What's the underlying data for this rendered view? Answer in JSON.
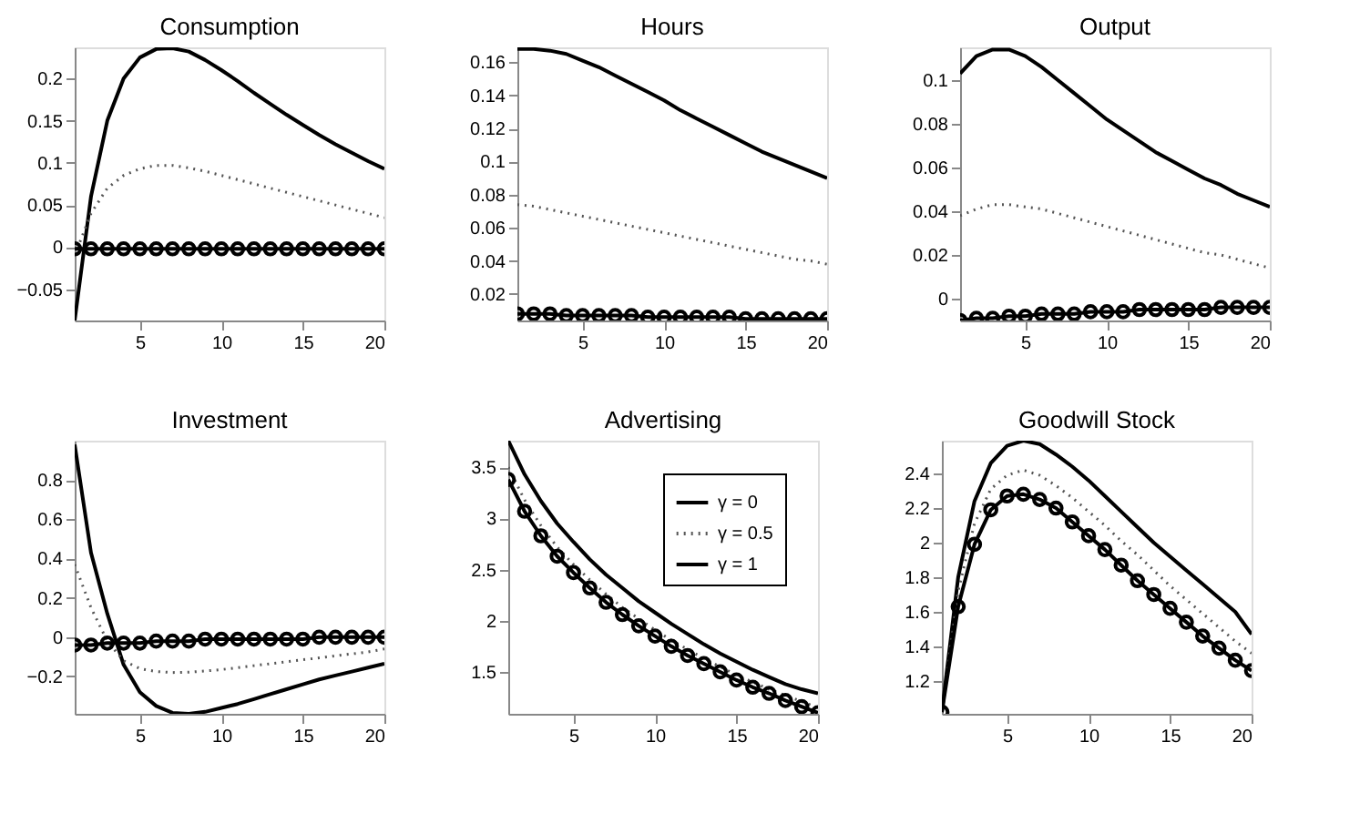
{
  "chart_data": [
    {
      "type": "line",
      "title": "Consumption",
      "x": [
        1,
        2,
        3,
        4,
        5,
        6,
        7,
        8,
        9,
        10,
        11,
        12,
        13,
        14,
        15,
        16,
        17,
        18,
        19,
        20
      ],
      "xlim": [
        1,
        20
      ],
      "xticks": [
        5,
        10,
        15,
        20
      ],
      "ylim": [
        -0.087,
        0.237
      ],
      "yticks": [
        -0.05,
        0,
        0.05,
        0.1,
        0.15,
        0.2
      ],
      "grid": false,
      "legend": false,
      "series": [
        {
          "color": "#000000",
          "line_style": "solid",
          "marker": "none",
          "values": [
            -0.087,
            0.06,
            0.15,
            0.2,
            0.225,
            0.235,
            0.236,
            0.232,
            0.222,
            0.21,
            0.197,
            0.183,
            0.17,
            0.157,
            0.145,
            0.133,
            0.122,
            0.112,
            0.102,
            0.093
          ]
        },
        {
          "color": "#555555",
          "line_style": "dotted",
          "marker": "none",
          "values": [
            -0.01,
            0.04,
            0.07,
            0.085,
            0.093,
            0.097,
            0.097,
            0.094,
            0.09,
            0.085,
            0.08,
            0.075,
            0.07,
            0.065,
            0.06,
            0.055,
            0.05,
            0.045,
            0.04,
            0.035
          ]
        },
        {
          "color": "#000000",
          "line_style": "solid",
          "marker": "circle",
          "values": [
            -0.002,
            -0.002,
            -0.002,
            -0.002,
            -0.002,
            -0.002,
            -0.002,
            -0.002,
            -0.002,
            -0.002,
            -0.002,
            -0.002,
            -0.002,
            -0.002,
            -0.002,
            -0.002,
            -0.002,
            -0.002,
            -0.002,
            -0.002
          ]
        }
      ]
    },
    {
      "type": "line",
      "title": "Hours",
      "x": [
        1,
        2,
        3,
        4,
        5,
        6,
        7,
        8,
        9,
        10,
        11,
        12,
        13,
        14,
        15,
        16,
        17,
        18,
        19,
        20
      ],
      "xlim": [
        1,
        20
      ],
      "xticks": [
        5,
        10,
        15,
        20
      ],
      "ylim": [
        0.004,
        0.169
      ],
      "yticks": [
        0.02,
        0.04,
        0.06,
        0.08,
        0.1,
        0.12,
        0.14,
        0.16
      ],
      "grid": false,
      "legend": false,
      "series": [
        {
          "color": "#000000",
          "line_style": "solid",
          "marker": "none",
          "values": [
            0.168,
            0.168,
            0.167,
            0.165,
            0.161,
            0.157,
            0.152,
            0.147,
            0.142,
            0.137,
            0.131,
            0.126,
            0.121,
            0.116,
            0.111,
            0.106,
            0.102,
            0.098,
            0.094,
            0.09
          ]
        },
        {
          "color": "#555555",
          "line_style": "dotted",
          "marker": "none",
          "values": [
            0.074,
            0.073,
            0.071,
            0.069,
            0.067,
            0.065,
            0.063,
            0.061,
            0.059,
            0.057,
            0.055,
            0.053,
            0.051,
            0.049,
            0.047,
            0.045,
            0.043,
            0.041,
            0.04,
            0.038
          ]
        },
        {
          "color": "#000000",
          "line_style": "solid",
          "marker": "circle",
          "values": [
            0.008,
            0.008,
            0.008,
            0.007,
            0.007,
            0.007,
            0.007,
            0.007,
            0.006,
            0.006,
            0.006,
            0.006,
            0.006,
            0.006,
            0.005,
            0.005,
            0.005,
            0.005,
            0.005,
            0.005
          ]
        }
      ]
    },
    {
      "type": "line",
      "title": "Output",
      "x": [
        1,
        2,
        3,
        4,
        5,
        6,
        7,
        8,
        9,
        10,
        11,
        12,
        13,
        14,
        15,
        16,
        17,
        18,
        19,
        20
      ],
      "xlim": [
        1,
        20
      ],
      "xticks": [
        5,
        10,
        15,
        20
      ],
      "ylim": [
        -0.01,
        0.115
      ],
      "yticks": [
        0,
        0.02,
        0.04,
        0.06,
        0.08,
        0.1
      ],
      "grid": false,
      "legend": false,
      "series": [
        {
          "color": "#000000",
          "line_style": "solid",
          "marker": "none",
          "values": [
            0.103,
            0.111,
            0.114,
            0.114,
            0.111,
            0.106,
            0.1,
            0.094,
            0.088,
            0.082,
            0.077,
            0.072,
            0.067,
            0.063,
            0.059,
            0.055,
            0.052,
            0.048,
            0.045,
            0.042
          ]
        },
        {
          "color": "#555555",
          "line_style": "dotted",
          "marker": "none",
          "values": [
            0.038,
            0.041,
            0.043,
            0.043,
            0.042,
            0.041,
            0.039,
            0.037,
            0.035,
            0.033,
            0.031,
            0.029,
            0.027,
            0.025,
            0.023,
            0.021,
            0.02,
            0.018,
            0.016,
            0.014
          ]
        },
        {
          "color": "#000000",
          "line_style": "solid",
          "marker": "circle",
          "values": [
            -0.01,
            -0.009,
            -0.009,
            -0.008,
            -0.008,
            -0.007,
            -0.007,
            -0.007,
            -0.006,
            -0.006,
            -0.006,
            -0.005,
            -0.005,
            -0.005,
            -0.005,
            -0.005,
            -0.004,
            -0.004,
            -0.004,
            -0.004
          ]
        }
      ]
    },
    {
      "type": "line",
      "title": "Investment",
      "x": [
        1,
        2,
        3,
        4,
        5,
        6,
        7,
        8,
        9,
        10,
        11,
        12,
        13,
        14,
        15,
        16,
        17,
        18,
        19,
        20
      ],
      "xlim": [
        1,
        20
      ],
      "xticks": [
        5,
        10,
        15,
        20
      ],
      "ylim": [
        -0.39,
        1.0
      ],
      "yticks": [
        -0.2,
        0,
        0.2,
        0.4,
        0.6,
        0.8
      ],
      "grid": false,
      "legend": false,
      "series": [
        {
          "color": "#000000",
          "line_style": "solid",
          "marker": "none",
          "values": [
            0.98,
            0.43,
            0.12,
            -0.14,
            -0.28,
            -0.35,
            -0.385,
            -0.39,
            -0.38,
            -0.36,
            -0.34,
            -0.315,
            -0.29,
            -0.265,
            -0.24,
            -0.215,
            -0.195,
            -0.175,
            -0.155,
            -0.135
          ]
        },
        {
          "color": "#555555",
          "line_style": "dotted",
          "marker": "none",
          "values": [
            0.37,
            0.15,
            -0.02,
            -0.12,
            -0.16,
            -0.175,
            -0.18,
            -0.178,
            -0.172,
            -0.165,
            -0.155,
            -0.145,
            -0.135,
            -0.125,
            -0.115,
            -0.105,
            -0.095,
            -0.085,
            -0.075,
            -0.06
          ]
        },
        {
          "color": "#000000",
          "line_style": "solid",
          "marker": "circle",
          "values": [
            -0.04,
            -0.04,
            -0.03,
            -0.03,
            -0.03,
            -0.02,
            -0.02,
            -0.02,
            -0.01,
            -0.01,
            -0.01,
            -0.01,
            -0.01,
            -0.01,
            -0.01,
            0,
            0,
            0,
            0,
            0
          ]
        }
      ]
    },
    {
      "type": "line",
      "title": "Advertising",
      "x": [
        1,
        2,
        3,
        4,
        5,
        6,
        7,
        8,
        9,
        10,
        11,
        12,
        13,
        14,
        15,
        16,
        17,
        18,
        19,
        20
      ],
      "xlim": [
        1,
        20
      ],
      "xticks": [
        5,
        10,
        15,
        20
      ],
      "ylim": [
        1.09,
        3.76
      ],
      "yticks": [
        1.5,
        2,
        2.5,
        3,
        3.5
      ],
      "grid": false,
      "legend": "top right",
      "series": [
        {
          "name": "γ = 0",
          "color": "#000000",
          "line_style": "solid",
          "marker": "none",
          "values": [
            3.76,
            3.43,
            3.17,
            2.95,
            2.77,
            2.6,
            2.45,
            2.32,
            2.19,
            2.08,
            1.97,
            1.87,
            1.77,
            1.68,
            1.6,
            1.52,
            1.45,
            1.38,
            1.33,
            1.29
          ]
        },
        {
          "name": "γ = 0.5",
          "color": "#555555",
          "line_style": "dotted",
          "marker": "none",
          "values": [
            3.5,
            3.18,
            2.93,
            2.72,
            2.55,
            2.4,
            2.26,
            2.13,
            2.02,
            1.91,
            1.81,
            1.72,
            1.63,
            1.55,
            1.47,
            1.4,
            1.33,
            1.27,
            1.21,
            1.15
          ]
        },
        {
          "name": "γ = 1",
          "color": "#000000",
          "line_style": "solid",
          "marker": "circle",
          "values": [
            3.38,
            3.07,
            2.83,
            2.63,
            2.47,
            2.32,
            2.18,
            2.06,
            1.95,
            1.85,
            1.75,
            1.66,
            1.58,
            1.5,
            1.42,
            1.35,
            1.29,
            1.22,
            1.16,
            1.1
          ]
        }
      ]
    },
    {
      "type": "line",
      "title": "Goodwill Stock",
      "x": [
        1,
        2,
        3,
        4,
        5,
        6,
        7,
        8,
        9,
        10,
        11,
        12,
        13,
        14,
        15,
        16,
        17,
        18,
        19,
        20
      ],
      "xlim": [
        1,
        20
      ],
      "xticks": [
        5,
        10,
        15,
        20
      ],
      "ylim": [
        1.01,
        2.59
      ],
      "yticks": [
        1.2,
        1.4,
        1.6,
        1.8,
        2,
        2.2,
        2.4
      ],
      "grid": false,
      "legend": false,
      "series": [
        {
          "color": "#000000",
          "line_style": "solid",
          "marker": "none",
          "values": [
            1.02,
            1.8,
            2.24,
            2.46,
            2.56,
            2.59,
            2.57,
            2.51,
            2.44,
            2.36,
            2.27,
            2.18,
            2.09,
            2.0,
            1.92,
            1.84,
            1.76,
            1.68,
            1.6,
            1.47
          ]
        },
        {
          "color": "#555555",
          "line_style": "dotted",
          "marker": "none",
          "values": [
            1.02,
            1.72,
            2.11,
            2.31,
            2.39,
            2.42,
            2.39,
            2.33,
            2.26,
            2.18,
            2.1,
            2.01,
            1.93,
            1.84,
            1.75,
            1.67,
            1.59,
            1.51,
            1.43,
            1.36
          ]
        },
        {
          "color": "#000000",
          "line_style": "solid",
          "marker": "circle",
          "values": [
            1.02,
            1.63,
            1.99,
            2.19,
            2.27,
            2.28,
            2.25,
            2.2,
            2.12,
            2.04,
            1.96,
            1.87,
            1.78,
            1.7,
            1.62,
            1.54,
            1.46,
            1.39,
            1.32,
            1.26
          ]
        }
      ]
    }
  ]
}
